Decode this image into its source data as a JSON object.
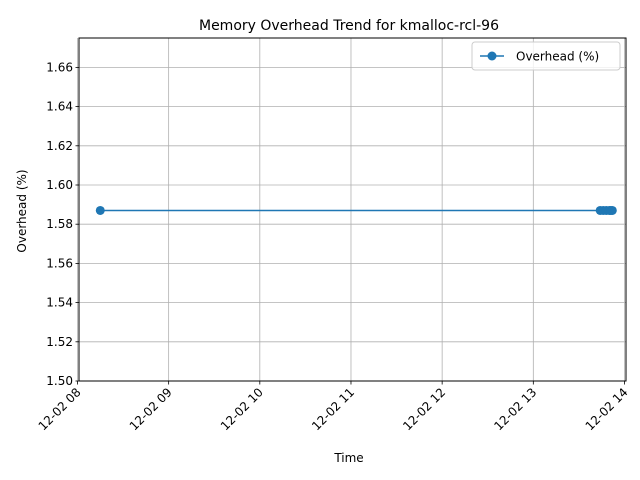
{
  "colors": {
    "series": "#1f77b4",
    "grid": "#b0b0b0",
    "axis": "#000000",
    "legend_border": "#cccccc"
  },
  "chart_data": {
    "type": "line",
    "title": "Memory Overhead Trend for kmalloc-rcl-96",
    "xlabel": "Time",
    "ylabel": "Overhead (%)",
    "x_type": "time",
    "xlim": [
      "2022-12-02 08:01",
      "2022-12-02 14:01"
    ],
    "ylim": [
      1.5,
      1.675
    ],
    "x_ticks": [
      {
        "label": "12-02 08",
        "t": "2022-12-02 08:00"
      },
      {
        "label": "12-02 09",
        "t": "2022-12-02 09:00"
      },
      {
        "label": "12-02 10",
        "t": "2022-12-02 10:00"
      },
      {
        "label": "12-02 11",
        "t": "2022-12-02 11:00"
      },
      {
        "label": "12-02 12",
        "t": "2022-12-02 12:00"
      },
      {
        "label": "12-02 13",
        "t": "2022-12-02 13:00"
      },
      {
        "label": "12-02 14",
        "t": "2022-12-02 14:00"
      }
    ],
    "y_ticks": [
      "1.50",
      "1.52",
      "1.54",
      "1.56",
      "1.58",
      "1.60",
      "1.62",
      "1.64",
      "1.66"
    ],
    "grid": true,
    "legend_position": "top-right",
    "series": [
      {
        "name": "Overhead (%)",
        "marker": "circle",
        "points": [
          {
            "t": "2022-12-02 08:15",
            "y": 1.587
          },
          {
            "t": "2022-12-02 13:44",
            "y": 1.587
          },
          {
            "t": "2022-12-02 13:46",
            "y": 1.587
          },
          {
            "t": "2022-12-02 13:48",
            "y": 1.587
          },
          {
            "t": "2022-12-02 13:50",
            "y": 1.587
          },
          {
            "t": "2022-12-02 13:51",
            "y": 1.587
          },
          {
            "t": "2022-12-02 13:52",
            "y": 1.587
          }
        ]
      }
    ]
  }
}
